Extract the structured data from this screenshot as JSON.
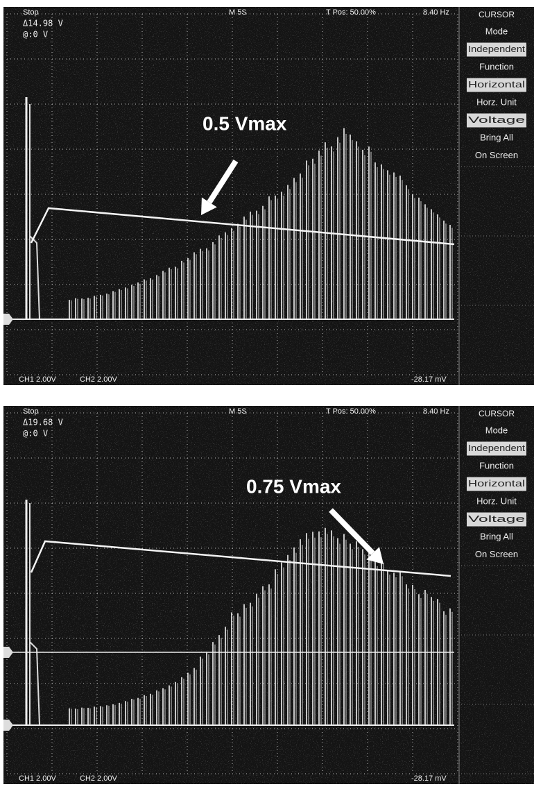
{
  "screens": [
    {
      "status": "Stop",
      "timebase": "M 5S",
      "trigger_position": "T Pos: 50.00%",
      "frequency": "8.40 Hz",
      "cursor_delta": "Δ14.98 V",
      "cursor_at": "@:0 V",
      "menu": {
        "title": "CURSOR",
        "items": [
          {
            "text": "Mode"
          },
          {
            "text": "Independent",
            "selected": true
          },
          {
            "text": "Function"
          },
          {
            "text": "Horizontal",
            "selected": true
          },
          {
            "text": "Horz. Unit"
          },
          {
            "text": "Voltage",
            "selected": true
          },
          {
            "text": "Bring All"
          },
          {
            "text": "On Screen"
          }
        ]
      },
      "channel_1": "CH1 2.00V",
      "channel_2": "CH2 2.00V",
      "readout": "-28.17 mV",
      "annotation": "0.5 Vmax"
    },
    {
      "status": "Stop",
      "timebase": "M 5S",
      "trigger_position": "T Pos: 50.00%",
      "frequency": "8.40 Hz",
      "cursor_delta": "Δ19.68 V",
      "cursor_at": "@:0 V",
      "menu": {
        "title": "CURSOR",
        "items": [
          {
            "text": "Mode"
          },
          {
            "text": "Independent",
            "selected": true
          },
          {
            "text": "Function"
          },
          {
            "text": "Horizontal",
            "selected": true
          },
          {
            "text": "Horz. Unit"
          },
          {
            "text": "Voltage",
            "selected": true
          },
          {
            "text": "Bring All"
          },
          {
            "text": "On Screen"
          }
        ]
      },
      "channel_1": "CH1 2.00V",
      "channel_2": "CH2 2.00V",
      "readout": "-28.17 mV",
      "annotation": "0.75 Vmax"
    }
  ]
}
